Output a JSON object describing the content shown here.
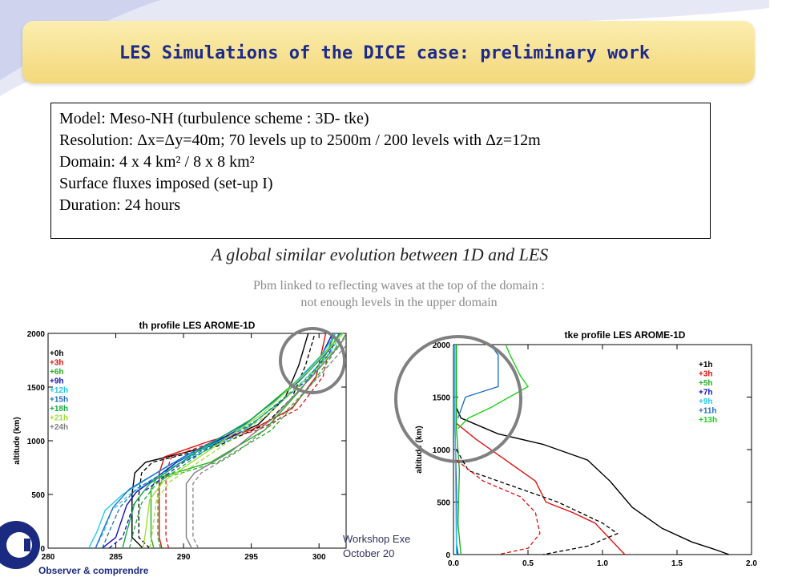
{
  "slide": {
    "title": "LES Simulations of the DICE case: preliminary work",
    "info_lines": [
      "Model: Meso-NH (turbulence scheme : 3D- tke)",
      "Resolution: Δx=Δy=40m; 70 levels up to 2500m / 200 levels with Δz=12m",
      "Domain:  4 x 4 km² / 8 x 8 km²",
      "Surface fluxes imposed (set-up I)",
      "Duration: 24 hours"
    ],
    "subtitle": "A global similar evolution between 1D and LES",
    "note_line1": "Pbm linked to reflecting waves at the top of the domain :",
    "note_line2": "not enough levels in the upper domain",
    "footer_line1": "Workshop Exe",
    "footer_line2": "October 20",
    "logo_tagline": "Observer & comprendre",
    "colors": {
      "title": "#1c2a8c",
      "bar": "#f3d77a",
      "circle": "#808080"
    }
  },
  "chart_data": [
    {
      "type": "line",
      "title": "th profile LES AROME-1D",
      "ylabel": "altitude (km)",
      "xlim": [
        280,
        302
      ],
      "ylim": [
        0,
        2000
      ],
      "xticks": [
        280,
        285,
        290,
        295,
        300
      ],
      "yticks": [
        0,
        500,
        1000,
        1500,
        2000
      ],
      "series": [
        {
          "name": "+0h",
          "color": "#000000",
          "values": [
            [
              287,
              0
            ],
            [
              286.2,
              100
            ],
            [
              286.2,
              500
            ],
            [
              286.4,
              700
            ],
            [
              287.2,
              800
            ],
            [
              292,
              950
            ],
            [
              295.5,
              1150
            ],
            [
              297.5,
              1400
            ],
            [
              298.5,
              1700
            ],
            [
              299.2,
              2000
            ]
          ]
        },
        {
          "name": "+3h",
          "color": "#e01010",
          "values": [
            [
              288.4,
              0
            ],
            [
              288.2,
              100
            ],
            [
              288.2,
              700
            ],
            [
              288.6,
              850
            ],
            [
              292,
              1000
            ],
            [
              295,
              1100
            ],
            [
              298,
              1300
            ],
            [
              299.8,
              1600
            ],
            [
              300.5,
              2000
            ]
          ]
        },
        {
          "name": "+6h",
          "color": "#22b022",
          "values": [
            [
              287.8,
              0
            ],
            [
              287.6,
              100
            ],
            [
              287.6,
              550
            ],
            [
              288,
              650
            ],
            [
              292,
              800
            ],
            [
              296,
              1100
            ],
            [
              298.8,
              1500
            ],
            [
              300.5,
              1800
            ],
            [
              301.2,
              2000
            ]
          ]
        },
        {
          "name": "+9h",
          "color": "#1010c0",
          "values": [
            [
              284,
              0
            ],
            [
              285,
              100
            ],
            [
              285.8,
              400
            ],
            [
              286.5,
              520
            ],
            [
              289.5,
              800
            ],
            [
              294,
              1100
            ],
            [
              298,
              1500
            ],
            [
              300.2,
              1800
            ],
            [
              301,
              2000
            ]
          ]
        },
        {
          "name": "+12h",
          "color": "#20c8f0",
          "values": [
            [
              283,
              0
            ],
            [
              283.6,
              150
            ],
            [
              284.2,
              350
            ],
            [
              285.5,
              500
            ],
            [
              289,
              780
            ],
            [
              293.5,
              1050
            ],
            [
              297.5,
              1450
            ],
            [
              300.2,
              1800
            ],
            [
              301.2,
              2000
            ]
          ]
        },
        {
          "name": "+15h",
          "color": "#2070c0",
          "values": [
            [
              283.5,
              0
            ],
            [
              284,
              150
            ],
            [
              284.8,
              380
            ],
            [
              286,
              550
            ],
            [
              290,
              850
            ],
            [
              294.5,
              1150
            ],
            [
              298.5,
              1550
            ],
            [
              300.8,
              1850
            ],
            [
              301.5,
              2000
            ]
          ]
        },
        {
          "name": "+18h",
          "color": "#10b040",
          "values": [
            [
              285.5,
              0
            ],
            [
              285.8,
              150
            ],
            [
              286.4,
              420
            ],
            [
              287.5,
              600
            ],
            [
              291,
              900
            ],
            [
              295,
              1200
            ],
            [
              298.8,
              1600
            ],
            [
              301,
              1900
            ],
            [
              301.6,
              2000
            ]
          ]
        },
        {
          "name": "+21h",
          "color": "#a0e030",
          "values": [
            [
              287,
              0
            ],
            [
              287.2,
              150
            ],
            [
              287.5,
              450
            ],
            [
              288.5,
              620
            ],
            [
              292,
              920
            ],
            [
              295.8,
              1250
            ],
            [
              299.2,
              1650
            ],
            [
              301.2,
              1920
            ],
            [
              301.8,
              2000
            ]
          ]
        },
        {
          "name": "+24h",
          "color": "#808080",
          "values": [
            [
              290.6,
              0
            ],
            [
              290.2,
              100
            ],
            [
              290.2,
              600
            ],
            [
              290.8,
              700
            ],
            [
              293.5,
              900
            ],
            [
              296.5,
              1200
            ],
            [
              299.5,
              1600
            ],
            [
              301.6,
              1900
            ],
            [
              302,
              2000
            ]
          ]
        }
      ]
    },
    {
      "type": "line",
      "title": "tke profile LES AROME-1D",
      "ylabel": "altitude (km)",
      "xlim": [
        0,
        2.0
      ],
      "ylim": [
        0,
        2000
      ],
      "xticks": [
        "0.0",
        "0.5",
        "1.0",
        "1.5",
        "2.0"
      ],
      "yticks": [
        0,
        500,
        1000,
        1500,
        2000
      ],
      "series": [
        {
          "name": "+1h",
          "color": "#000000",
          "values": [
            [
              0.02,
              2000
            ],
            [
              0.02,
              1400
            ],
            [
              0.05,
              1300
            ],
            [
              0.3,
              1150
            ],
            [
              0.6,
              1050
            ],
            [
              0.9,
              900
            ],
            [
              1.05,
              700
            ],
            [
              1.2,
              450
            ],
            [
              1.4,
              250
            ],
            [
              1.6,
              120
            ],
            [
              1.75,
              50
            ],
            [
              1.85,
              0
            ]
          ]
        },
        {
          "name": "+3h",
          "color": "#e01010",
          "values": [
            [
              0.02,
              2000
            ],
            [
              0.02,
              1250
            ],
            [
              0.15,
              1100
            ],
            [
              0.35,
              900
            ],
            [
              0.55,
              700
            ],
            [
              0.62,
              500
            ],
            [
              0.8,
              400
            ],
            [
              0.95,
              300
            ],
            [
              1.05,
              150
            ],
            [
              1.15,
              0
            ]
          ]
        },
        {
          "name": "+5h",
          "color": "#22b022",
          "values": [
            [
              0.02,
              2000
            ],
            [
              0.02,
              1200
            ],
            [
              0.04,
              800
            ],
            [
              0.03,
              300
            ],
            [
              0.05,
              0
            ]
          ]
        },
        {
          "name": "+7h",
          "color": "#1010c0",
          "values": [
            [
              0.01,
              2000
            ],
            [
              0.01,
              1200
            ],
            [
              0.02,
              600
            ],
            [
              0.02,
              100
            ],
            [
              0.03,
              0
            ]
          ]
        },
        {
          "name": "+9h",
          "color": "#20c8f0",
          "values": [
            [
              0.01,
              2000
            ],
            [
              0.01,
              1300
            ],
            [
              0.015,
              700
            ],
            [
              0.02,
              0
            ]
          ]
        },
        {
          "name": "+11h",
          "color": "#2070c0",
          "values": [
            [
              0.03,
              1300
            ],
            [
              0.08,
              1500
            ],
            [
              0.3,
              1600
            ],
            [
              0.3,
              1900
            ],
            [
              0.25,
              2000
            ]
          ]
        },
        {
          "name": "+13h",
          "color": "#20d020",
          "values": [
            [
              0.03,
              1200
            ],
            [
              0.1,
              1300
            ],
            [
              0.25,
              1400
            ],
            [
              0.5,
              1600
            ],
            [
              0.45,
              1700
            ],
            [
              0.38,
              1900
            ],
            [
              0.35,
              2000
            ]
          ]
        }
      ]
    }
  ]
}
